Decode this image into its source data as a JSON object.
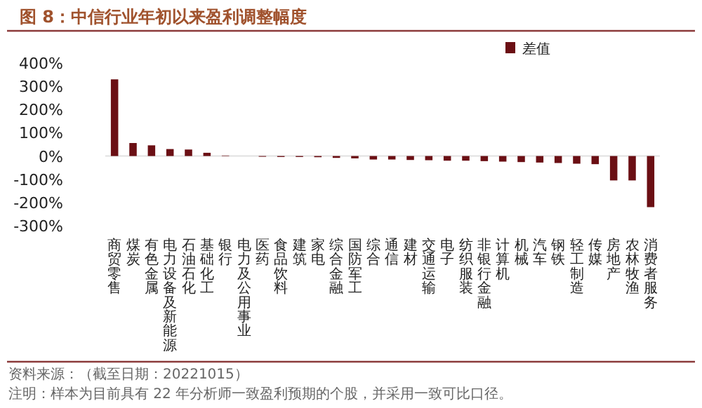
{
  "chart_data": {
    "type": "bar",
    "title": "图 8：中信行业年初以来盈利调整幅度",
    "categories": [
      "商贸零售",
      "煤炭",
      "有色金属",
      "电力设备及新能源",
      "石油石化",
      "基础化工",
      "银行",
      "电力及公用事业",
      "医药",
      "食品饮料",
      "建筑",
      "家电",
      "综合金融",
      "国防军工",
      "综合",
      "通信",
      "建材",
      "交通运输",
      "电子",
      "纺织服装",
      "非银行金融",
      "计算机",
      "机械",
      "汽车",
      "钢铁",
      "轻工制造",
      "传媒",
      "房地产",
      "农林牧渔",
      "消费者服务"
    ],
    "series": [
      {
        "name": "差值",
        "color": "#6b0f14",
        "values": [
          330,
          56,
          46,
          30,
          28,
          14,
          2,
          null,
          -3,
          -4,
          -4,
          -5,
          -8,
          -10,
          -15,
          -15,
          -17,
          -18,
          -20,
          -20,
          -22,
          -24,
          -26,
          -28,
          -30,
          -33,
          -35,
          -105,
          -105,
          -220
        ]
      }
    ],
    "ylim": [
      -300,
      400
    ],
    "yticks": [
      {
        "value": -300,
        "label": "-300%"
      },
      {
        "value": -200,
        "label": "-200%"
      },
      {
        "value": -100,
        "label": "-100%"
      },
      {
        "value": 0,
        "label": "0%"
      },
      {
        "value": 100,
        "label": "100%"
      },
      {
        "value": 200,
        "label": "200%"
      },
      {
        "value": 300,
        "label": "300%"
      },
      {
        "value": 400,
        "label": "400%"
      }
    ],
    "legend": "top right",
    "annotations": [
      "资料来源：（截至日期：20221015）",
      "注明：样本为目前具有 22 年分析师一致盈利预期的个股，并采用一致可比口径。"
    ]
  }
}
